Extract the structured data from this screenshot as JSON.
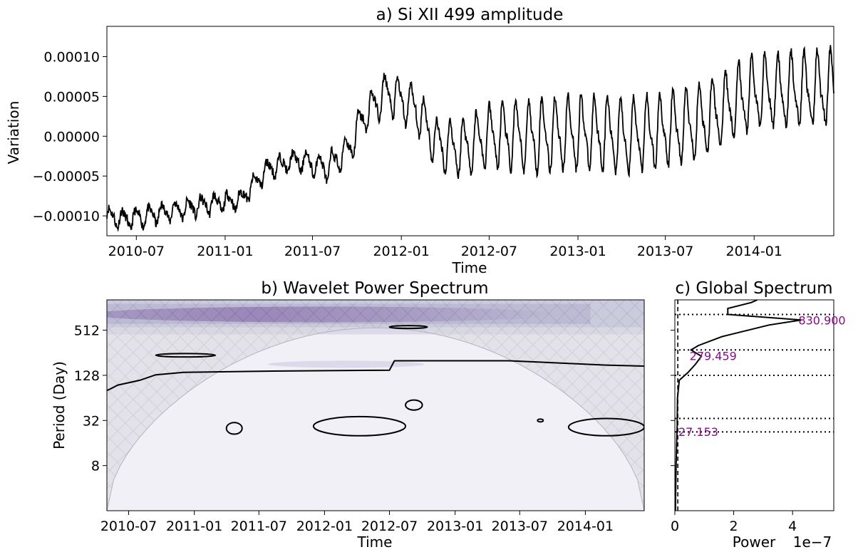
{
  "chart_data": [
    {
      "type": "line",
      "panel": "a",
      "title": "a) Si XII 499 amplitude",
      "xlabel": "Time",
      "ylabel": "Variation",
      "x_start": "2010-05-01",
      "x_end": "2014-06-15",
      "xlim": [
        "2010-05-01",
        "2014-06-15"
      ],
      "ylim": [
        -0.000125,
        0.000138
      ],
      "xticks": [
        "2010-07",
        "2011-01",
        "2011-07",
        "2012-01",
        "2012-07",
        "2013-01",
        "2013-07",
        "2014-01"
      ],
      "yticks": [
        -0.0001,
        -5e-05,
        0.0,
        5e-05,
        0.0001
      ],
      "ytick_labels": [
        "−0.00010",
        "−0.00005",
        "0.00000",
        "0.00005",
        "0.00010"
      ],
      "series_color": "#000000",
      "trend_points": [
        [
          "2010-05-01",
          -0.0001
        ],
        [
          "2010-06-15",
          -0.000105
        ],
        [
          "2010-09-01",
          -9.5e-05
        ],
        [
          "2010-12-01",
          -8.5e-05
        ],
        [
          "2011-02-01",
          -8e-05
        ],
        [
          "2011-04-01",
          -4e-05
        ],
        [
          "2011-06-01",
          -3e-05
        ],
        [
          "2011-08-01",
          -4e-05
        ],
        [
          "2011-09-15",
          -1.5e-05
        ],
        [
          "2011-10-15",
          2.5e-05
        ],
        [
          "2011-12-01",
          5.5e-05
        ],
        [
          "2012-02-01",
          3.5e-05
        ],
        [
          "2012-03-15",
          -1e-05
        ],
        [
          "2012-05-01",
          -1.5e-05
        ],
        [
          "2012-07-01",
          0.0
        ],
        [
          "2012-10-01",
          0.0
        ],
        [
          "2013-01-01",
          5e-06
        ],
        [
          "2013-05-01",
          0.0
        ],
        [
          "2013-09-01",
          1.5e-05
        ],
        [
          "2014-01-01",
          5.5e-05
        ],
        [
          "2014-06-15",
          6e-05
        ]
      ],
      "oscillation": {
        "period_days": 27.153,
        "amplitude": [
          1e-05,
          4e-05
        ]
      }
    },
    {
      "type": "heatmap",
      "panel": "b",
      "title": "b) Wavelet Power Spectrum",
      "xlabel": "Time",
      "ylabel": "Period (Day)",
      "x_start": "2010-05-01",
      "x_end": "2014-06-15",
      "xticks": [
        "2010-07",
        "2011-01",
        "2011-07",
        "2012-01",
        "2012-07",
        "2013-01",
        "2013-07",
        "2014-01"
      ],
      "yticks": [
        8,
        32,
        128,
        512
      ],
      "ylim_period_days": [
        2,
        1300
      ],
      "y_scale": "log2",
      "colormap": [
        "#f2f0f7",
        "#dadaeb",
        "#bcbddc",
        "#9e9ac8",
        "#807dba",
        "#6a51a3",
        "#54278f"
      ],
      "power_band": {
        "center_period_days": 830.9,
        "strongest_near": "2011-09",
        "extent": [
          "2010-05-01",
          "2014-06-15"
        ]
      },
      "cone_of_influence": {
        "hatched": true,
        "fill": "#c8c8cc",
        "edge_color": "#b4b4bc"
      },
      "contour_regions": [
        {
          "t0": "2012-07-01",
          "t1": "2012-10-15",
          "p0": 555,
          "p1": 575
        },
        {
          "t0": "2010-09-15",
          "t1": "2011-03-01",
          "p0": 225,
          "p1": 250
        },
        {
          "t0": "2012-08-15",
          "t1": "2012-10-01",
          "p0": 44,
          "p1": 60
        },
        {
          "t0": "2011-04-01",
          "t1": "2011-05-15",
          "p0": 21,
          "p1": 30
        },
        {
          "t0": "2011-12-01",
          "t1": "2012-08-15",
          "p0": 20,
          "p1": 36
        },
        {
          "t0": "2013-08-20",
          "t1": "2013-09-05",
          "p0": 31,
          "p1": 33
        },
        {
          "t0": "2013-11-15",
          "t1": "2014-06-15",
          "p0": 20,
          "p1": 34
        }
      ],
      "significance_line": [
        [
          "2010-05-01",
          80
        ],
        [
          "2010-06-01",
          95
        ],
        [
          "2010-08-01",
          110
        ],
        [
          "2010-09-15",
          130
        ],
        [
          "2010-12-01",
          140
        ],
        [
          "2011-07-01",
          145
        ],
        [
          "2012-07-01",
          150
        ],
        [
          "2012-07-15",
          200
        ],
        [
          "2013-06-01",
          200
        ],
        [
          "2014-03-01",
          175
        ],
        [
          "2014-06-15",
          170
        ]
      ]
    },
    {
      "type": "line",
      "panel": "c",
      "title": "c) Global Spectrum",
      "xlabel": "Power",
      "x_offset_label": "1e−7",
      "xlim": [
        0,
        5.4
      ],
      "xticks": [
        0,
        2,
        4
      ],
      "y_scale": "log2",
      "significance_color": "#000000",
      "spectrum": [
        [
          2,
          0.02
        ],
        [
          8,
          0.04
        ],
        [
          16,
          0.06
        ],
        [
          27.153,
          0.08
        ],
        [
          32,
          0.08
        ],
        [
          64,
          0.09
        ],
        [
          110,
          0.15
        ],
        [
          140,
          0.45
        ],
        [
          180,
          0.7
        ],
        [
          230,
          0.9
        ],
        [
          279.459,
          0.55
        ],
        [
          320,
          0.8
        ],
        [
          420,
          1.6
        ],
        [
          600,
          3.2
        ],
        [
          700,
          4.3
        ],
        [
          830.9,
          1.8
        ],
        [
          1000,
          1.8
        ],
        [
          1200,
          2.6
        ],
        [
          1300,
          2.8
        ]
      ],
      "peak_periods": [
        830.9,
        279.459,
        27.153
      ],
      "peak_labels": [
        "830.900",
        "279.459",
        "27.153"
      ],
      "reference_periods": [
        830.9,
        279.459,
        128,
        34,
        22.5
      ]
    }
  ]
}
